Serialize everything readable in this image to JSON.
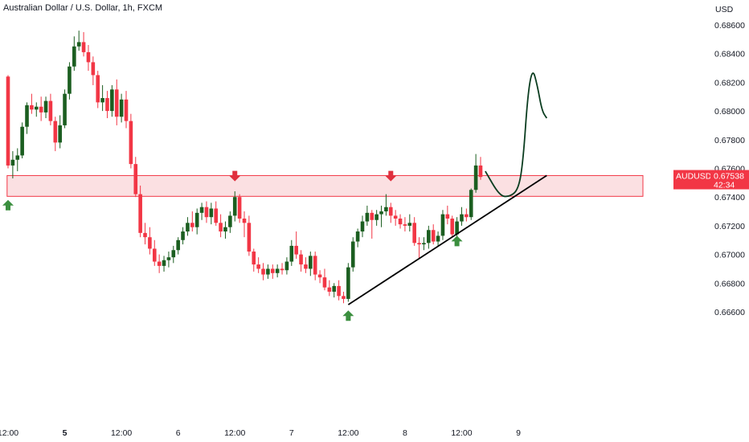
{
  "chart_data": {
    "type": "candlestick",
    "title": "Australian Dollar / U.S. Dollar, 1h, FXCM",
    "currency_label": "USD",
    "symbol": "AUDUSD",
    "last_price": "0.67538",
    "countdown": "42:34",
    "ylim": [
      0.6652,
      0.6872
    ],
    "y_ticks": [
      "0.68600",
      "0.68400",
      "0.68200",
      "0.68000",
      "0.67800",
      "0.67600",
      "0.67400",
      "0.67200",
      "0.67000",
      "0.66800",
      "0.66600"
    ],
    "y_tick_values": [
      0.686,
      0.684,
      0.682,
      0.68,
      0.678,
      0.676,
      0.674,
      0.672,
      0.67,
      0.668,
      0.666
    ],
    "x_ticks": [
      {
        "label": "12:00",
        "bar": 0,
        "bold": false
      },
      {
        "label": "5",
        "bar": 12,
        "bold": true
      },
      {
        "label": "12:00",
        "bar": 24,
        "bold": false
      },
      {
        "label": "6",
        "bar": 36,
        "bold": false
      },
      {
        "label": "12:00",
        "bar": 48,
        "bold": false
      },
      {
        "label": "7",
        "bar": 60,
        "bold": false
      },
      {
        "label": "12:00",
        "bar": 72,
        "bold": false
      },
      {
        "label": "8",
        "bar": 84,
        "bold": false
      },
      {
        "label": "12:00",
        "bar": 96,
        "bold": false
      },
      {
        "label": "9",
        "bar": 108,
        "bold": false
      }
    ],
    "candles": [
      [
        0.6824,
        0.6825,
        0.676,
        0.6762
      ],
      [
        0.6762,
        0.6772,
        0.6753,
        0.6766
      ],
      [
        0.6766,
        0.6774,
        0.6758,
        0.6769
      ],
      [
        0.6769,
        0.6792,
        0.6767,
        0.6789
      ],
      [
        0.6789,
        0.6806,
        0.6784,
        0.6804
      ],
      [
        0.6804,
        0.6812,
        0.6798,
        0.6801
      ],
      [
        0.6801,
        0.6806,
        0.6796,
        0.6803
      ],
      [
        0.6803,
        0.681,
        0.6793,
        0.6799
      ],
      [
        0.6799,
        0.681,
        0.6795,
        0.6807
      ],
      [
        0.6807,
        0.6812,
        0.679,
        0.6793
      ],
      [
        0.6793,
        0.6796,
        0.6772,
        0.6778
      ],
      [
        0.6778,
        0.6797,
        0.6774,
        0.679
      ],
      [
        0.679,
        0.6815,
        0.6788,
        0.6812
      ],
      [
        0.6812,
        0.6834,
        0.6808,
        0.6831
      ],
      [
        0.6831,
        0.6852,
        0.6828,
        0.6845
      ],
      [
        0.6845,
        0.6856,
        0.6842,
        0.6848
      ],
      [
        0.6848,
        0.6855,
        0.6838,
        0.6841
      ],
      [
        0.6841,
        0.6846,
        0.6828,
        0.6834
      ],
      [
        0.6834,
        0.6838,
        0.6818,
        0.6825
      ],
      [
        0.6825,
        0.6828,
        0.6802,
        0.6806
      ],
      [
        0.6806,
        0.6818,
        0.68,
        0.6809
      ],
      [
        0.6809,
        0.6814,
        0.6795,
        0.68
      ],
      [
        0.68,
        0.6818,
        0.6796,
        0.6815
      ],
      [
        0.6815,
        0.6822,
        0.679,
        0.6796
      ],
      [
        0.6796,
        0.6812,
        0.6792,
        0.6808
      ],
      [
        0.6808,
        0.6814,
        0.6788,
        0.6793
      ],
      [
        0.6793,
        0.6798,
        0.676,
        0.6763
      ],
      [
        0.6763,
        0.6768,
        0.674,
        0.6742
      ],
      [
        0.6742,
        0.6748,
        0.6712,
        0.6715
      ],
      [
        0.6715,
        0.6722,
        0.6707,
        0.6712
      ],
      [
        0.6712,
        0.6719,
        0.67,
        0.6704
      ],
      [
        0.6704,
        0.671,
        0.6692,
        0.6695
      ],
      [
        0.6695,
        0.67,
        0.6687,
        0.6692
      ],
      [
        0.6692,
        0.6699,
        0.6688,
        0.6696
      ],
      [
        0.6696,
        0.6702,
        0.6691,
        0.6698
      ],
      [
        0.6698,
        0.6706,
        0.6694,
        0.6703
      ],
      [
        0.6703,
        0.6712,
        0.67,
        0.671
      ],
      [
        0.671,
        0.6719,
        0.6707,
        0.6716
      ],
      [
        0.6716,
        0.6726,
        0.6713,
        0.6722
      ],
      [
        0.6722,
        0.673,
        0.6716,
        0.6719
      ],
      [
        0.6719,
        0.6732,
        0.6714,
        0.6729
      ],
      [
        0.6729,
        0.6736,
        0.6724,
        0.6733
      ],
      [
        0.6733,
        0.6737,
        0.6722,
        0.6726
      ],
      [
        0.6726,
        0.6736,
        0.6721,
        0.6732
      ],
      [
        0.6732,
        0.6737,
        0.672,
        0.6722
      ],
      [
        0.6722,
        0.6728,
        0.6712,
        0.6716
      ],
      [
        0.6716,
        0.6723,
        0.6711,
        0.6719
      ],
      [
        0.6719,
        0.673,
        0.6715,
        0.6727
      ],
      [
        0.6727,
        0.6744,
        0.6723,
        0.674
      ],
      [
        0.674,
        0.6742,
        0.6722,
        0.6725
      ],
      [
        0.6725,
        0.673,
        0.6712,
        0.6722
      ],
      [
        0.6722,
        0.6727,
        0.6699,
        0.6702
      ],
      [
        0.6702,
        0.6704,
        0.6688,
        0.6693
      ],
      [
        0.6693,
        0.6698,
        0.6687,
        0.669
      ],
      [
        0.669,
        0.6694,
        0.6682,
        0.6686
      ],
      [
        0.6686,
        0.6693,
        0.6683,
        0.669
      ],
      [
        0.669,
        0.6693,
        0.6683,
        0.6687
      ],
      [
        0.6687,
        0.6693,
        0.6684,
        0.669
      ],
      [
        0.669,
        0.6694,
        0.6686,
        0.6689
      ],
      [
        0.6689,
        0.6698,
        0.6686,
        0.6695
      ],
      [
        0.6695,
        0.671,
        0.6692,
        0.6706
      ],
      [
        0.6706,
        0.6716,
        0.6697,
        0.67
      ],
      [
        0.67,
        0.6703,
        0.6688,
        0.6693
      ],
      [
        0.6693,
        0.6698,
        0.6687,
        0.669
      ],
      [
        0.669,
        0.6702,
        0.6685,
        0.6699
      ],
      [
        0.6699,
        0.6702,
        0.6682,
        0.6686
      ],
      [
        0.6686,
        0.6689,
        0.668,
        0.6684
      ],
      [
        0.6684,
        0.669,
        0.6675,
        0.6677
      ],
      [
        0.6677,
        0.6682,
        0.6671,
        0.6674
      ],
      [
        0.6674,
        0.668,
        0.667,
        0.6678
      ],
      [
        0.6678,
        0.6682,
        0.6668,
        0.6671
      ],
      [
        0.6671,
        0.6674,
        0.6666,
        0.6669
      ],
      [
        0.6669,
        0.6694,
        0.6667,
        0.6691
      ],
      [
        0.6691,
        0.6712,
        0.6688,
        0.6709
      ],
      [
        0.6709,
        0.6718,
        0.6705,
        0.6716
      ],
      [
        0.6716,
        0.6727,
        0.6712,
        0.6723
      ],
      [
        0.6723,
        0.6734,
        0.672,
        0.6729
      ],
      [
        0.6729,
        0.6731,
        0.6711,
        0.6724
      ],
      [
        0.6724,
        0.6731,
        0.672,
        0.6728
      ],
      [
        0.6728,
        0.6734,
        0.6719,
        0.673
      ],
      [
        0.673,
        0.6742,
        0.6727,
        0.6733
      ],
      [
        0.6733,
        0.6736,
        0.6722,
        0.6727
      ],
      [
        0.6727,
        0.6731,
        0.672,
        0.6725
      ],
      [
        0.6725,
        0.6728,
        0.6718,
        0.6721
      ],
      [
        0.6721,
        0.6726,
        0.6716,
        0.672
      ],
      [
        0.672,
        0.6728,
        0.6716,
        0.6722
      ],
      [
        0.6722,
        0.6726,
        0.6706,
        0.6708
      ],
      [
        0.6708,
        0.6712,
        0.6697,
        0.6707
      ],
      [
        0.6707,
        0.6712,
        0.6703,
        0.6708
      ],
      [
        0.6708,
        0.672,
        0.6704,
        0.6717
      ],
      [
        0.6717,
        0.6721,
        0.6707,
        0.6709
      ],
      [
        0.6709,
        0.6716,
        0.6706,
        0.6713
      ],
      [
        0.6713,
        0.6731,
        0.671,
        0.6728
      ],
      [
        0.6728,
        0.6734,
        0.6721,
        0.6725
      ],
      [
        0.6725,
        0.6727,
        0.6712,
        0.6714
      ],
      [
        0.6714,
        0.6726,
        0.6712,
        0.6723
      ],
      [
        0.6723,
        0.6733,
        0.672,
        0.6728
      ],
      [
        0.6728,
        0.6732,
        0.6723,
        0.6726
      ],
      [
        0.6726,
        0.6746,
        0.6724,
        0.6745
      ],
      [
        0.6745,
        0.677,
        0.6743,
        0.6762
      ],
      [
        0.6762,
        0.6768,
        0.6752,
        0.6754
      ]
    ],
    "support_zone": [
      0.67405,
      0.6755
    ],
    "trendline": [
      [
        72,
        0.6665
      ],
      [
        114,
        0.6755
      ]
    ],
    "up_arrows": [
      [
        0,
        0.6738
      ],
      [
        72,
        0.6661
      ],
      [
        95,
        0.6713
      ]
    ],
    "down_arrows": [
      [
        48,
        0.6751
      ],
      [
        81,
        0.6751
      ]
    ],
    "projection": [
      [
        101,
        0.6758
      ],
      [
        104,
        0.6741
      ],
      [
        106,
        0.674
      ],
      [
        108,
        0.6745
      ],
      [
        109,
        0.6765
      ],
      [
        110,
        0.6812
      ],
      [
        111,
        0.683
      ],
      [
        112,
        0.6818
      ],
      [
        113,
        0.68
      ],
      [
        114,
        0.6795
      ]
    ],
    "colors": {
      "up": "#1b5e20",
      "down": "#f23645",
      "zone_fill": "#f7c6cb",
      "zone_stroke": "#f23645",
      "line": "#000000",
      "projection": "#0b3d20",
      "arrow_up": "#3b8f3f",
      "arrow_down": "#e0303e",
      "label_bg": "#f23645",
      "text": "#131722"
    }
  }
}
